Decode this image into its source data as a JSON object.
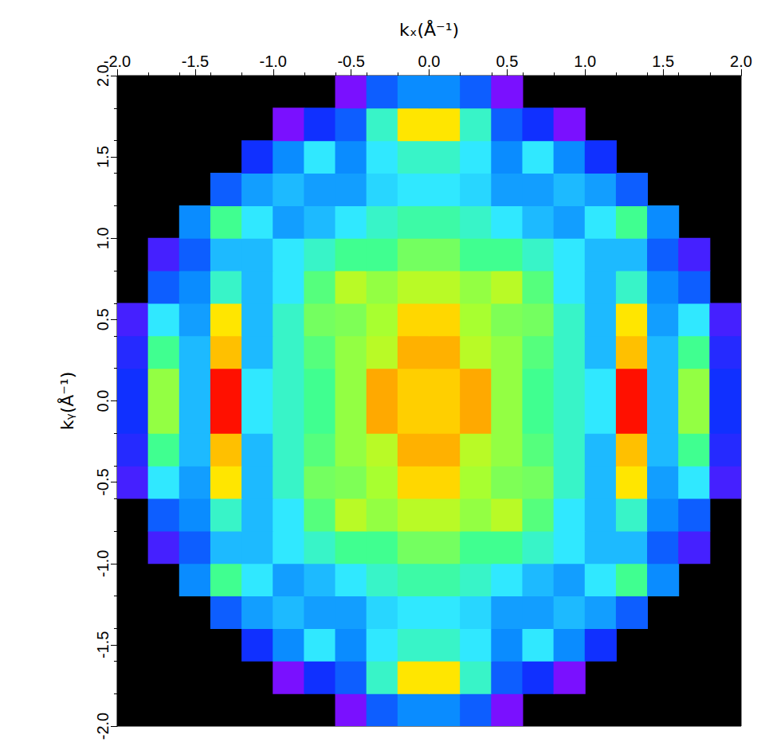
{
  "chart_data": {
    "type": "heatmap",
    "xlabel": "kₓ(Å⁻¹)",
    "ylabel": "kᵧ(Å⁻¹)",
    "xlim": [
      -2.0,
      2.0
    ],
    "ylim": [
      -2.0,
      2.0
    ],
    "xticks": [
      {
        "value": -2.0,
        "label": "-2.0"
      },
      {
        "value": -1.5,
        "label": "-1.5"
      },
      {
        "value": -1.0,
        "label": "-1.0"
      },
      {
        "value": -0.5,
        "label": "-0.5"
      },
      {
        "value": 0,
        "label": "0.0"
      },
      {
        "value": 0.5,
        "label": "0.5"
      },
      {
        "value": 1.0,
        "label": "1.0"
      },
      {
        "value": 1.5,
        "label": "1.5"
      },
      {
        "value": 2.0,
        "label": "2.0"
      }
    ],
    "yticks": [
      {
        "value": -2.0,
        "label": "-2.0"
      },
      {
        "value": -1.5,
        "label": "-1.5"
      },
      {
        "value": -1.0,
        "label": "-1.0"
      },
      {
        "value": -0.5,
        "label": "-0.5"
      },
      {
        "value": 0,
        "label": "0.0"
      },
      {
        "value": 0.5,
        "label": "0.5"
      },
      {
        "value": 1.0,
        "label": "1.0"
      },
      {
        "value": 1.5,
        "label": "1.5"
      },
      {
        "value": 2.0,
        "label": "2.0"
      }
    ],
    "grid": false,
    "value_range": [
      0,
      1
    ],
    "x": [
      -1.9,
      -1.7,
      -1.5,
      -1.3,
      -1.1,
      -0.9,
      -0.7,
      -0.5,
      -0.3,
      -0.1,
      0.1,
      0.3,
      0.5,
      0.7,
      0.9,
      1.1,
      1.3,
      1.5,
      1.7,
      1.9
    ],
    "y": [
      -1.9,
      -1.7,
      -1.5,
      -1.3,
      -1.1,
      -0.9,
      -0.7,
      -0.5,
      -0.3,
      -0.1,
      0.1,
      0.3,
      0.5,
      0.7,
      0.9,
      1.1,
      1.3,
      1.5,
      1.7,
      1.9
    ],
    "z": [
      [
        null,
        null,
        null,
        null,
        null,
        null,
        null,
        0.2,
        0.35,
        0.4,
        0.4,
        0.35,
        0.2,
        null,
        null,
        null,
        null,
        null,
        null,
        null
      ],
      [
        null,
        null,
        null,
        null,
        null,
        0.2,
        0.3,
        0.35,
        0.55,
        0.8,
        0.8,
        0.55,
        0.35,
        0.3,
        0.2,
        null,
        null,
        null,
        null,
        null
      ],
      [
        null,
        null,
        null,
        null,
        0.3,
        0.4,
        0.5,
        0.4,
        0.5,
        0.55,
        0.55,
        0.5,
        0.4,
        0.5,
        0.4,
        0.3,
        null,
        null,
        null,
        null
      ],
      [
        null,
        null,
        null,
        0.35,
        0.42,
        0.45,
        0.42,
        0.42,
        0.48,
        0.5,
        0.5,
        0.48,
        0.42,
        0.42,
        0.45,
        0.42,
        0.35,
        null,
        null,
        null
      ],
      [
        null,
        null,
        0.4,
        0.6,
        0.5,
        0.42,
        0.45,
        0.5,
        0.55,
        0.58,
        0.58,
        0.55,
        0.5,
        0.45,
        0.42,
        0.5,
        0.6,
        0.4,
        null,
        null
      ],
      [
        null,
        0.25,
        0.35,
        0.45,
        0.45,
        0.5,
        0.55,
        0.6,
        0.6,
        0.65,
        0.65,
        0.6,
        0.6,
        0.55,
        0.5,
        0.45,
        0.45,
        0.35,
        0.25,
        null
      ],
      [
        null,
        0.35,
        0.4,
        0.55,
        0.45,
        0.5,
        0.62,
        0.72,
        0.68,
        0.72,
        0.72,
        0.68,
        0.72,
        0.62,
        0.5,
        0.45,
        0.55,
        0.4,
        0.35,
        null
      ],
      [
        0.25,
        0.5,
        0.42,
        0.8,
        0.45,
        0.55,
        0.65,
        0.66,
        0.7,
        0.82,
        0.82,
        0.7,
        0.66,
        0.65,
        0.55,
        0.45,
        0.8,
        0.42,
        0.5,
        0.25
      ],
      [
        0.28,
        0.6,
        0.45,
        0.85,
        0.45,
        0.55,
        0.62,
        0.68,
        0.72,
        0.87,
        0.87,
        0.72,
        0.68,
        0.62,
        0.55,
        0.45,
        0.85,
        0.45,
        0.6,
        0.28
      ],
      [
        0.3,
        0.68,
        0.45,
        1.0,
        0.5,
        0.55,
        0.6,
        0.68,
        0.88,
        0.83,
        0.83,
        0.88,
        0.68,
        0.6,
        0.55,
        0.5,
        1.0,
        0.45,
        0.68,
        0.3
      ],
      [
        0.3,
        0.68,
        0.45,
        1.0,
        0.5,
        0.55,
        0.6,
        0.68,
        0.88,
        0.83,
        0.83,
        0.88,
        0.68,
        0.6,
        0.55,
        0.5,
        1.0,
        0.45,
        0.68,
        0.3
      ],
      [
        0.28,
        0.6,
        0.45,
        0.85,
        0.45,
        0.55,
        0.62,
        0.68,
        0.72,
        0.87,
        0.87,
        0.72,
        0.68,
        0.62,
        0.55,
        0.45,
        0.85,
        0.45,
        0.6,
        0.28
      ],
      [
        0.25,
        0.5,
        0.42,
        0.8,
        0.45,
        0.55,
        0.65,
        0.66,
        0.7,
        0.82,
        0.82,
        0.7,
        0.66,
        0.65,
        0.55,
        0.45,
        0.8,
        0.42,
        0.5,
        0.25
      ],
      [
        null,
        0.35,
        0.4,
        0.55,
        0.45,
        0.5,
        0.62,
        0.72,
        0.68,
        0.72,
        0.72,
        0.68,
        0.72,
        0.62,
        0.5,
        0.45,
        0.55,
        0.4,
        0.35,
        null
      ],
      [
        null,
        0.25,
        0.35,
        0.45,
        0.45,
        0.5,
        0.55,
        0.6,
        0.6,
        0.65,
        0.65,
        0.6,
        0.6,
        0.55,
        0.5,
        0.45,
        0.45,
        0.35,
        0.25,
        null
      ],
      [
        null,
        null,
        0.4,
        0.6,
        0.5,
        0.42,
        0.45,
        0.5,
        0.55,
        0.58,
        0.58,
        0.55,
        0.5,
        0.45,
        0.42,
        0.5,
        0.6,
        0.4,
        null,
        null
      ],
      [
        null,
        null,
        null,
        0.35,
        0.42,
        0.45,
        0.42,
        0.42,
        0.48,
        0.5,
        0.5,
        0.48,
        0.42,
        0.42,
        0.45,
        0.42,
        0.35,
        null,
        null,
        null
      ],
      [
        null,
        null,
        null,
        null,
        0.3,
        0.4,
        0.5,
        0.4,
        0.5,
        0.55,
        0.55,
        0.5,
        0.4,
        0.5,
        0.4,
        0.3,
        null,
        null,
        null,
        null
      ],
      [
        null,
        null,
        null,
        null,
        null,
        0.2,
        0.3,
        0.35,
        0.55,
        0.8,
        0.8,
        0.55,
        0.35,
        0.3,
        0.2,
        null,
        null,
        null,
        null,
        null
      ],
      [
        null,
        null,
        null,
        null,
        null,
        null,
        null,
        0.2,
        0.35,
        0.4,
        0.4,
        0.35,
        0.2,
        null,
        null,
        null,
        null,
        null,
        null,
        null
      ]
    ]
  }
}
